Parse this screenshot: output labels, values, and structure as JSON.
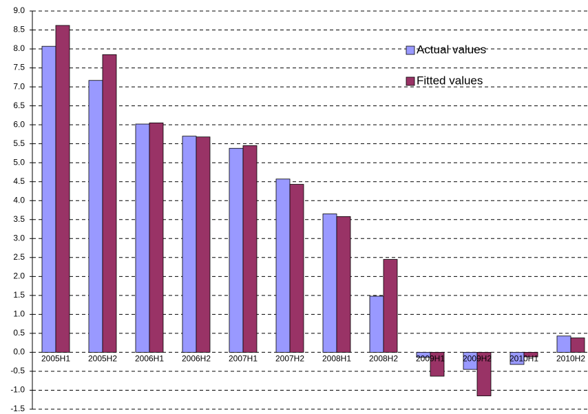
{
  "chart_data": {
    "type": "bar",
    "categories": [
      "2005H1",
      "2005H2",
      "2006H1",
      "2006H2",
      "2007H1",
      "2007H2",
      "2008H1",
      "2008H2",
      "2009H1",
      "2009H2",
      "2010H1",
      "2010H2"
    ],
    "series": [
      {
        "name": "Actual values",
        "color": "#9999ff",
        "values": [
          8.07,
          7.17,
          6.02,
          5.7,
          5.38,
          4.57,
          3.65,
          1.48,
          -0.13,
          -0.45,
          -0.32,
          0.43
        ]
      },
      {
        "name": "Fitted values",
        "color": "#993366",
        "values": [
          8.62,
          7.85,
          6.05,
          5.68,
          5.45,
          4.43,
          3.58,
          2.45,
          -0.63,
          -1.15,
          -0.12,
          0.38
        ]
      }
    ],
    "ylim": [
      -1.5,
      9.0
    ],
    "yticks": [
      {
        "value": -1.5,
        "label": "-1.5"
      },
      {
        "value": -1,
        "label": "-1.0"
      },
      -0.5,
      {
        "value": 0,
        "label": "0.0"
      },
      0.5,
      {
        "value": 1,
        "label": "1.0"
      },
      1.5,
      {
        "value": 2,
        "label": "2.0"
      },
      2.5,
      {
        "value": 3,
        "label": "3.0"
      },
      3.5,
      {
        "value": 4,
        "label": "4.0"
      },
      4.5,
      {
        "value": 5,
        "label": "5.0"
      },
      5.5,
      {
        "value": 6,
        "label": "6.0"
      },
      6.5,
      {
        "value": 7,
        "label": "7.0"
      },
      7.5,
      {
        "value": 8,
        "label": "8.0"
      },
      8.5,
      {
        "value": 9,
        "label": "9.0"
      }
    ],
    "grid": true,
    "legend": "upper right"
  }
}
